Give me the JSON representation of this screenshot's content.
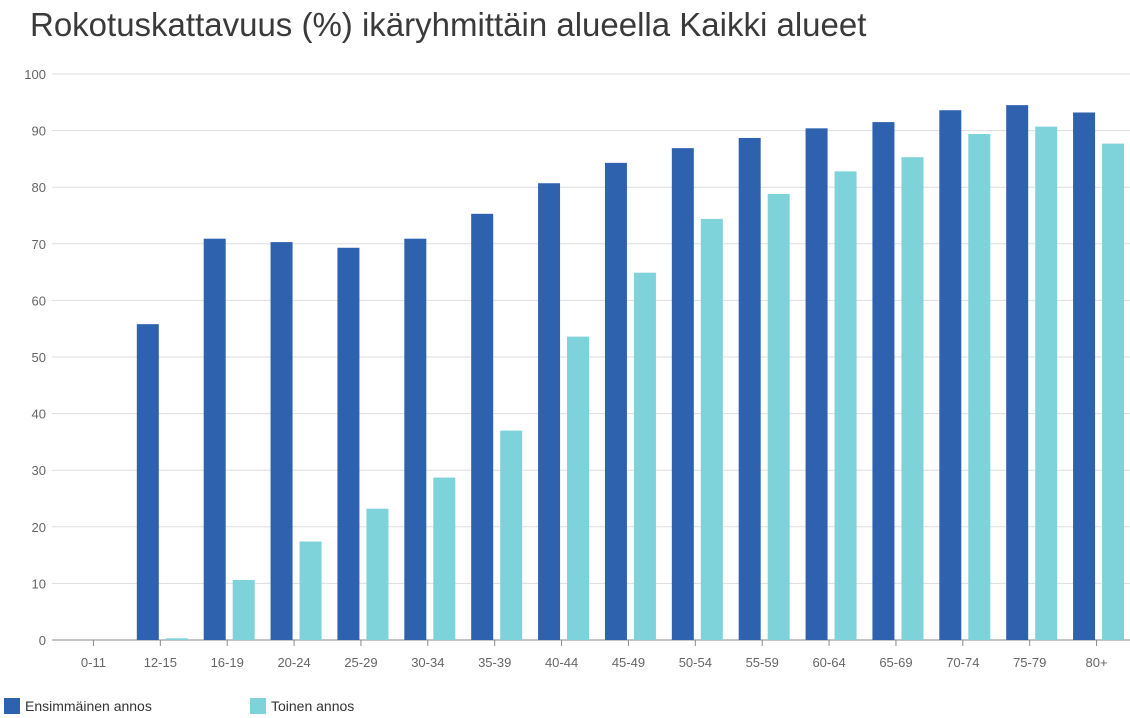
{
  "chart_data": {
    "type": "bar",
    "title": "Rokotuskattavuus (%) ikäryhmittäin alueella Kaikki alueet",
    "xlabel": "",
    "ylabel": "",
    "ylim": [
      0,
      100
    ],
    "yticks": [
      0,
      10,
      20,
      30,
      40,
      50,
      60,
      70,
      80,
      90,
      100
    ],
    "grid": true,
    "legend_position": "bottom-left",
    "categories": [
      "0-11",
      "12-15",
      "16-19",
      "20-24",
      "25-29",
      "30-34",
      "35-39",
      "40-44",
      "45-49",
      "50-54",
      "55-59",
      "60-64",
      "65-69",
      "70-74",
      "75-79",
      "80+"
    ],
    "series": [
      {
        "name": "Ensimmäinen annos",
        "color": "#2e62ae",
        "values": [
          0,
          55.8,
          70.9,
          70.3,
          69.3,
          70.9,
          75.3,
          80.7,
          84.3,
          86.9,
          88.7,
          90.4,
          91.5,
          93.6,
          94.5,
          93.2
        ]
      },
      {
        "name": "Toinen annos",
        "color": "#7ed2d9",
        "values": [
          0,
          0.3,
          10.6,
          17.4,
          23.2,
          28.7,
          37.0,
          53.6,
          64.9,
          74.4,
          78.8,
          82.8,
          85.3,
          89.4,
          90.7,
          87.7
        ]
      }
    ]
  }
}
